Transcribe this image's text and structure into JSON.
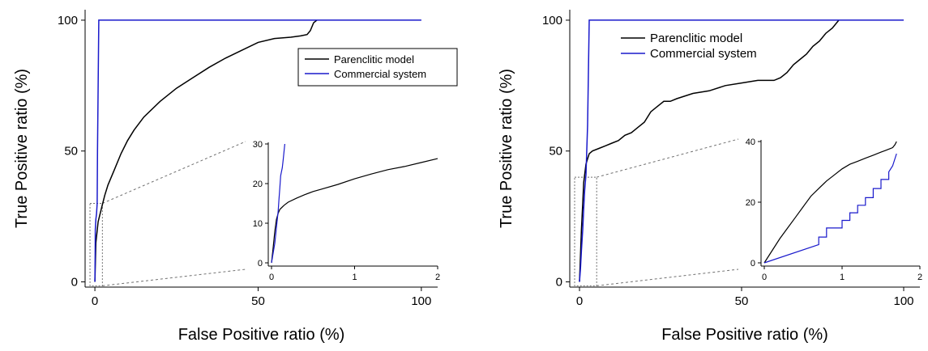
{
  "colors": {
    "parenclitic": "#000000",
    "commercial": "#1a1acc",
    "zoom": "#707070"
  },
  "chart_data": [
    {
      "type": "line",
      "xlabel": "False Positive ratio (%)",
      "ylabel": "True Positive ratio (%)",
      "xlim": [
        -3,
        105
      ],
      "ylim": [
        -2,
        104
      ],
      "xticks": [
        0,
        50,
        100
      ],
      "yticks": [
        0,
        50,
        100
      ],
      "legend_position": "top-right",
      "series": [
        {
          "name": "Parenclitic model",
          "x": [
            0,
            0.3,
            1,
            2,
            3,
            4,
            6,
            8,
            10,
            12,
            15,
            20,
            25,
            30,
            35,
            40,
            45,
            50,
            55,
            60,
            63,
            65,
            66,
            67,
            68
          ],
          "y": [
            0,
            15,
            23,
            28,
            33,
            37,
            43,
            49,
            54,
            58,
            63,
            69,
            74,
            78,
            82,
            85.5,
            88.5,
            91.5,
            93,
            93.5,
            94,
            94.5,
            96,
            99,
            100
          ]
        },
        {
          "name": "Commercial system",
          "x": [
            0,
            0.08,
            0.12,
            0.3,
            0.5,
            0.7,
            0.8,
            1.2,
            100
          ],
          "y": [
            0,
            10,
            20,
            24,
            26,
            30,
            50,
            100,
            100
          ]
        }
      ],
      "inset": {
        "xlim": [
          0,
          2
        ],
        "ylim": [
          0,
          30
        ],
        "xticks": [
          0,
          1,
          2
        ],
        "yticks": [
          0,
          10,
          20,
          30
        ],
        "series": [
          {
            "name": "Parenclitic model",
            "x": [
              0,
              0.02,
              0.04,
              0.06,
              0.08,
              0.1,
              0.15,
              0.2,
              0.3,
              0.4,
              0.5,
              0.6,
              0.8,
              1.0,
              1.2,
              1.4,
              1.6,
              1.8,
              2.0
            ],
            "y": [
              0,
              4,
              8,
              11,
              12.5,
              13.5,
              14.5,
              15.3,
              16.3,
              17.2,
              18,
              18.6,
              19.8,
              21.2,
              22.4,
              23.5,
              24.3,
              25.3,
              26.3
            ]
          },
          {
            "name": "Commercial system",
            "x": [
              0,
              0.04,
              0.06,
              0.08,
              0.09,
              0.1,
              0.11,
              0.12,
              0.13,
              0.14,
              0.15,
              0.16
            ],
            "y": [
              0,
              5,
              9,
              13,
              16,
              19,
              22,
              23,
              24,
              26,
              28,
              30
            ]
          }
        ]
      }
    },
    {
      "type": "line",
      "xlabel": "False Positive ratio (%)",
      "ylabel": "True Positive ratio (%)",
      "xlim": [
        -3,
        105
      ],
      "ylim": [
        -2,
        104
      ],
      "xticks": [
        0,
        50,
        100
      ],
      "yticks": [
        0,
        50,
        100
      ],
      "legend_position": "top-center",
      "series": [
        {
          "name": "Parenclitic model",
          "x": [
            0,
            0.3,
            0.6,
            1,
            1.3,
            1.7,
            2,
            2.5,
            3,
            4,
            6,
            8,
            10,
            12,
            14,
            16,
            18,
            20,
            22,
            24,
            26,
            28,
            30,
            35,
            40,
            45,
            50,
            55,
            60,
            62,
            64,
            66,
            68,
            70,
            72,
            74,
            76,
            78,
            80
          ],
          "y": [
            0,
            10,
            20,
            30,
            38,
            42,
            45,
            47,
            49,
            50,
            51,
            52,
            53,
            54,
            56,
            57,
            59,
            61,
            65,
            67,
            69,
            69,
            70,
            72,
            73,
            75,
            76,
            77,
            77,
            78,
            80,
            83,
            85,
            87,
            90,
            92,
            95,
            97,
            100
          ]
        },
        {
          "name": "Commercial system",
          "x": [
            0,
            0.3,
            0.6,
            1,
            1.3,
            1.6,
            2,
            2.5,
            3,
            100
          ],
          "y": [
            0,
            5,
            12,
            20,
            28,
            35,
            41,
            60,
            100,
            100
          ]
        }
      ],
      "inset": {
        "xlim": [
          0,
          2
        ],
        "ylim": [
          0,
          40
        ],
        "xticks": [
          0,
          1,
          2
        ],
        "yticks": [
          0,
          20,
          40
        ],
        "series": [
          {
            "name": "Parenclitic model",
            "x": [
              0,
              0.1,
              0.2,
              0.3,
              0.4,
              0.5,
              0.6,
              0.7,
              0.8,
              0.9,
              1.0,
              1.1,
              1.2,
              1.3,
              1.4,
              1.5,
              1.55,
              1.6,
              1.65,
              1.68,
              1.7
            ],
            "y": [
              0,
              4,
              8,
              11.5,
              15,
              18.5,
              22,
              24.5,
              27,
              29,
              31,
              32.5,
              33.5,
              34.5,
              35.5,
              36.5,
              37,
              37.5,
              38,
              39,
              40
            ]
          },
          {
            "name": "Commercial system",
            "x": [
              0,
              0.7,
              0.7,
              0.8,
              0.8,
              1.0,
              1.0,
              1.1,
              1.1,
              1.2,
              1.2,
              1.3,
              1.3,
              1.4,
              1.4,
              1.5,
              1.5,
              1.6,
              1.6,
              1.65,
              1.7
            ],
            "y": [
              0,
              6,
              8.5,
              8.5,
              11.5,
              11.5,
              14,
              14,
              16.5,
              16.5,
              19,
              19,
              21.5,
              21.5,
              24.5,
              24.5,
              27.5,
              27.5,
              30,
              32,
              36
            ]
          }
        ]
      }
    }
  ]
}
